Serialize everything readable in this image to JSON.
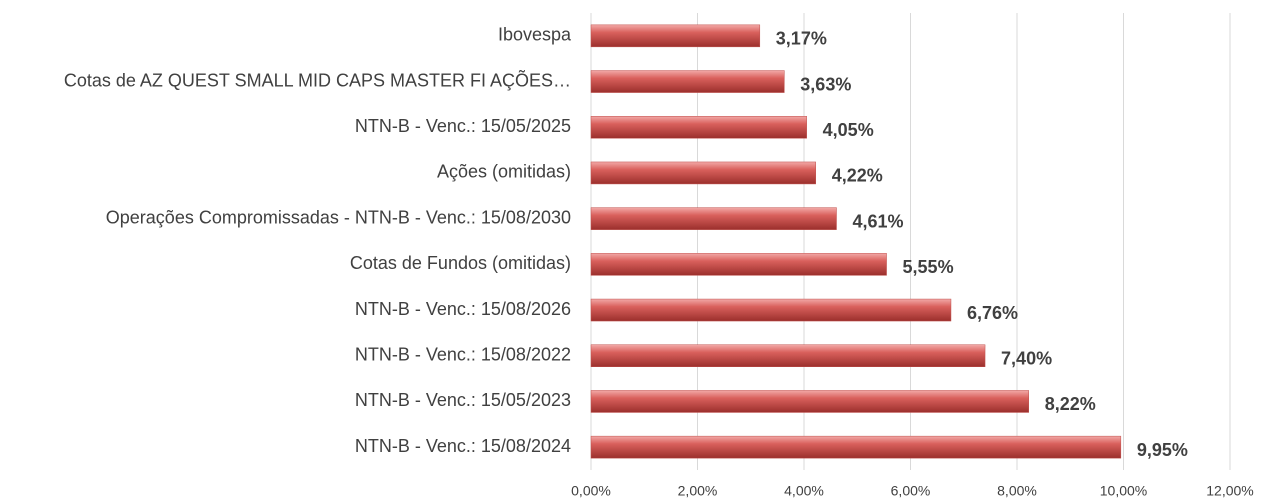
{
  "chart_data": {
    "type": "bar",
    "orientation": "horizontal",
    "categories": [
      "Ibovespa",
      "Cotas de AZ QUEST SMALL MID CAPS MASTER FI AÇÕES…",
      "NTN-B - Venc.: 15/05/2025",
      "Ações (omitidas)",
      "Operações Compromissadas - NTN-B - Venc.: 15/08/2030",
      "Cotas de Fundos (omitidas)",
      "NTN-B - Venc.: 15/08/2026",
      "NTN-B - Venc.: 15/08/2022",
      "NTN-B - Venc.: 15/05/2023",
      "NTN-B - Venc.: 15/08/2024"
    ],
    "values": [
      3.17,
      3.63,
      4.05,
      4.22,
      4.61,
      5.55,
      6.76,
      7.4,
      8.22,
      9.95
    ],
    "value_labels": [
      "3,17%",
      "3,63%",
      "4,05%",
      "4,22%",
      "4,61%",
      "5,55%",
      "6,76%",
      "7,40%",
      "8,22%",
      "9,95%"
    ],
    "color": "#c0504d",
    "xlim": [
      0,
      12
    ],
    "xticks": [
      {
        "value": 0,
        "label": "0,00%"
      },
      {
        "value": 2,
        "label": "2,00%"
      },
      {
        "value": 4,
        "label": "4,00%"
      },
      {
        "value": 6,
        "label": "6,00%"
      },
      {
        "value": 8,
        "label": "8,00%"
      },
      {
        "value": 10,
        "label": "10,00%"
      },
      {
        "value": 12,
        "label": "12,00%"
      }
    ],
    "grid": true
  }
}
